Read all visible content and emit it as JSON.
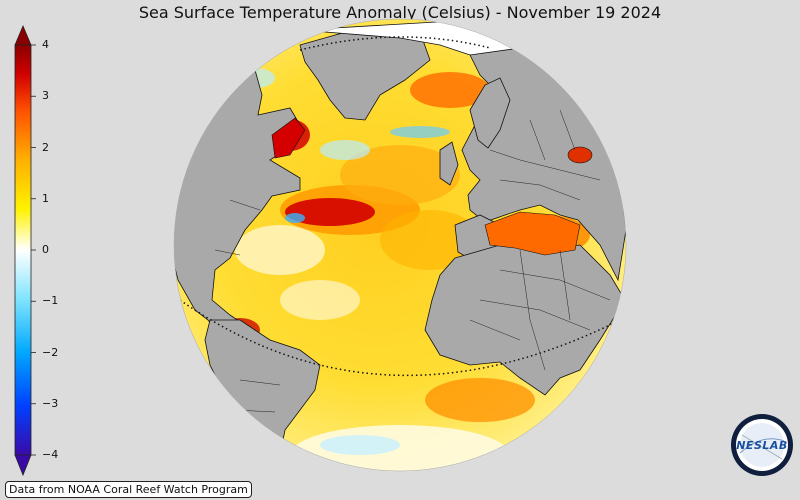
{
  "title": "Sea Surface Temperature Anomaly (Celsius) - November 19 2024",
  "colorbar": {
    "ticks": [
      "4",
      "3",
      "2",
      "1",
      "0",
      "−1",
      "−2",
      "−3",
      "−4"
    ],
    "min": -4,
    "max": 4,
    "colors": [
      "#3a0aa8",
      "#0050ff",
      "#33c8ff",
      "#ffffff",
      "#fff000",
      "#ff9a00",
      "#e02000",
      "#8a0000"
    ]
  },
  "credit": "Data from NOAA Coral Reef Watch Program",
  "logo": {
    "text": "NESLAB"
  },
  "map_colors": {
    "land": "#a9a9a9",
    "ocean_warm": "#ffd21a",
    "ocean_hot": "#ff7a00",
    "ocean_very_hot": "#d40000",
    "ocean_neutral": "#fffbe0",
    "ocean_cool": "#b8ecff",
    "background": "#dcdcdc"
  }
}
